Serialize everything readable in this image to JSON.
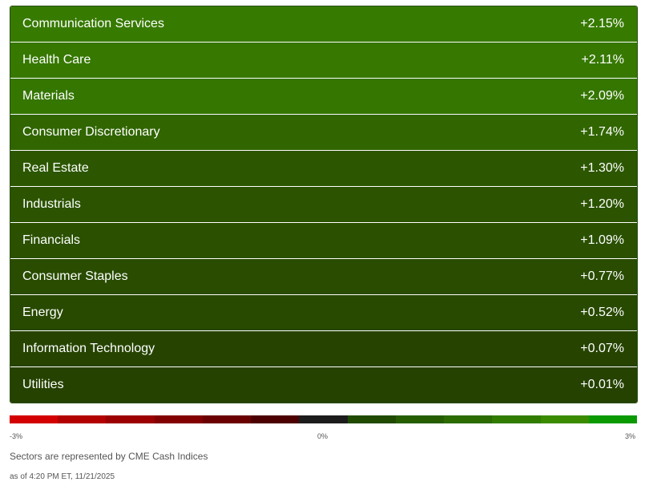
{
  "sectors": [
    {
      "name": "Communication Services",
      "change": "+2.15%",
      "color": "#377a00"
    },
    {
      "name": "Health Care",
      "change": "+2.11%",
      "color": "#367800"
    },
    {
      "name": "Materials",
      "change": "+2.09%",
      "color": "#357600"
    },
    {
      "name": "Consumer Discretionary",
      "change": "+1.74%",
      "color": "#306500"
    },
    {
      "name": "Real Estate",
      "change": "+1.30%",
      "color": "#2c5700"
    },
    {
      "name": "Industrials",
      "change": "+1.20%",
      "color": "#2b5300"
    },
    {
      "name": "Financials",
      "change": "+1.09%",
      "color": "#2a5000"
    },
    {
      "name": "Consumer Staples",
      "change": "+0.77%",
      "color": "#294c00"
    },
    {
      "name": "Energy",
      "change": "+0.52%",
      "color": "#284900"
    },
    {
      "name": "Information Technology",
      "change": "+0.07%",
      "color": "#264400"
    },
    {
      "name": "Utilities",
      "change": "+0.01%",
      "color": "#254200"
    }
  ],
  "legend": {
    "colors": [
      "#d40000",
      "#b30000",
      "#9c0000",
      "#830000",
      "#6b0000",
      "#4d0000",
      "#1c1c1c",
      "#1f4a00",
      "#255d00",
      "#2b6b00",
      "#317c00",
      "#3b8b00",
      "#0a9a00"
    ],
    "min_label": "-3%",
    "mid_label": "0%",
    "max_label": "3%"
  },
  "footer": {
    "source_note": "Sectors are represented by CME Cash Indices",
    "timestamp": "as of 4:20 PM ET, 11/21/2025"
  }
}
